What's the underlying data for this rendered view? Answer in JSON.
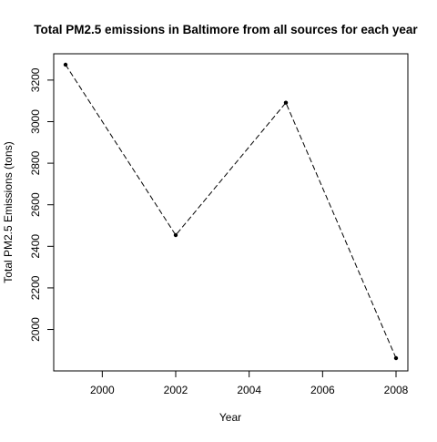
{
  "chart_data": {
    "type": "line",
    "title": "Total PM2.5 emissions in Baltimore from all sources for each year",
    "xlabel": "Year",
    "ylabel": "Total PM2.5 Emissions (tons)",
    "x": [
      1999,
      2002,
      2005,
      2008
    ],
    "series": [
      {
        "values": [
          3274,
          2454,
          3091,
          1862
        ]
      }
    ],
    "xlim": [
      1999,
      2008
    ],
    "ylim": [
      1862,
      3274
    ],
    "xticks": [
      "2000",
      "2002",
      "2004",
      "2006",
      "2008"
    ],
    "yticks": [
      "2000",
      "2200",
      "2400",
      "2600",
      "2800",
      "3000",
      "3200"
    ],
    "line_style": "dashed",
    "marker": "filled-circle",
    "color": "#000000",
    "grid": false,
    "legend": false
  }
}
